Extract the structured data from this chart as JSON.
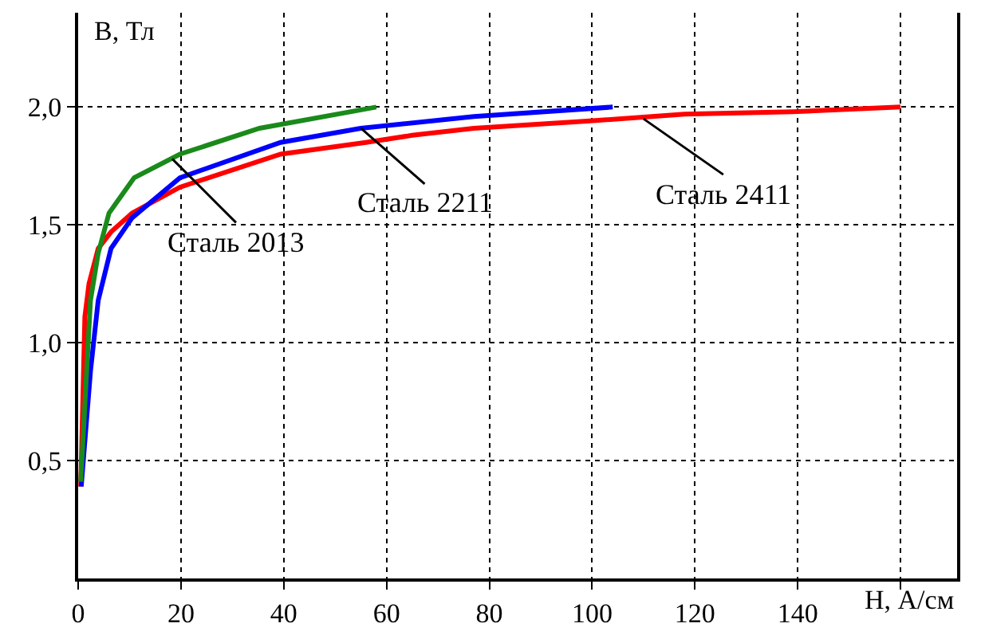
{
  "chart_data": {
    "type": "line",
    "xlabel": "H, А/см",
    "ylabel": "B, Тл",
    "series": [
      {
        "color": "#ff0000",
        "x": [
          0.5,
          1.3,
          2.1,
          3.9,
          6.4,
          10.5,
          19.8,
          39.4,
          56,
          65,
          77,
          99,
          118,
          139,
          160
        ],
        "values": [
          0.39,
          1.11,
          1.25,
          1.4,
          1.47,
          1.55,
          1.66,
          1.8,
          1.85,
          1.88,
          1.91,
          1.94,
          1.97,
          1.98,
          2.0
        ]
      },
      {
        "color": "#0000ff",
        "x": [
          0.6,
          2.4,
          3.9,
          6.4,
          10.5,
          19.8,
          39.4,
          55,
          77,
          104
        ],
        "values": [
          0.39,
          0.88,
          1.18,
          1.4,
          1.53,
          1.7,
          1.85,
          1.91,
          1.96,
          2.0
        ]
      },
      {
        "color": "#1a8a1a",
        "x": [
          0.5,
          2.4,
          3.9,
          6,
          10.9,
          19.8,
          35.3,
          58
        ],
        "values": [
          0.41,
          1.18,
          1.38,
          1.55,
          1.7,
          1.8,
          1.91,
          2.0
        ]
      }
    ],
    "annotations": [
      {
        "text": "Сталь 2013",
        "x": 18.3,
        "y": 1.78
      },
      {
        "text": "Сталь 2211",
        "x": 55,
        "y": 1.91
      },
      {
        "text": "Сталь 2411",
        "x": 110,
        "y": 1.95
      }
    ],
    "xlim": [
      0,
      171
    ],
    "ylim": [
      0,
      2.4
    ],
    "xticks": [
      0,
      20,
      40,
      60,
      80,
      100,
      120,
      140,
      {
        "value": 160,
        "label": null
      }
    ],
    "yticks": [
      {
        "value": 0.5,
        "label": "0,5"
      },
      {
        "value": 1.0,
        "label": "1,0"
      },
      {
        "value": 1.5,
        "label": "1,5"
      },
      {
        "value": 2.0,
        "label": "2,0"
      }
    ],
    "grid": true,
    "line_style": "solid",
    "marker": "none"
  }
}
